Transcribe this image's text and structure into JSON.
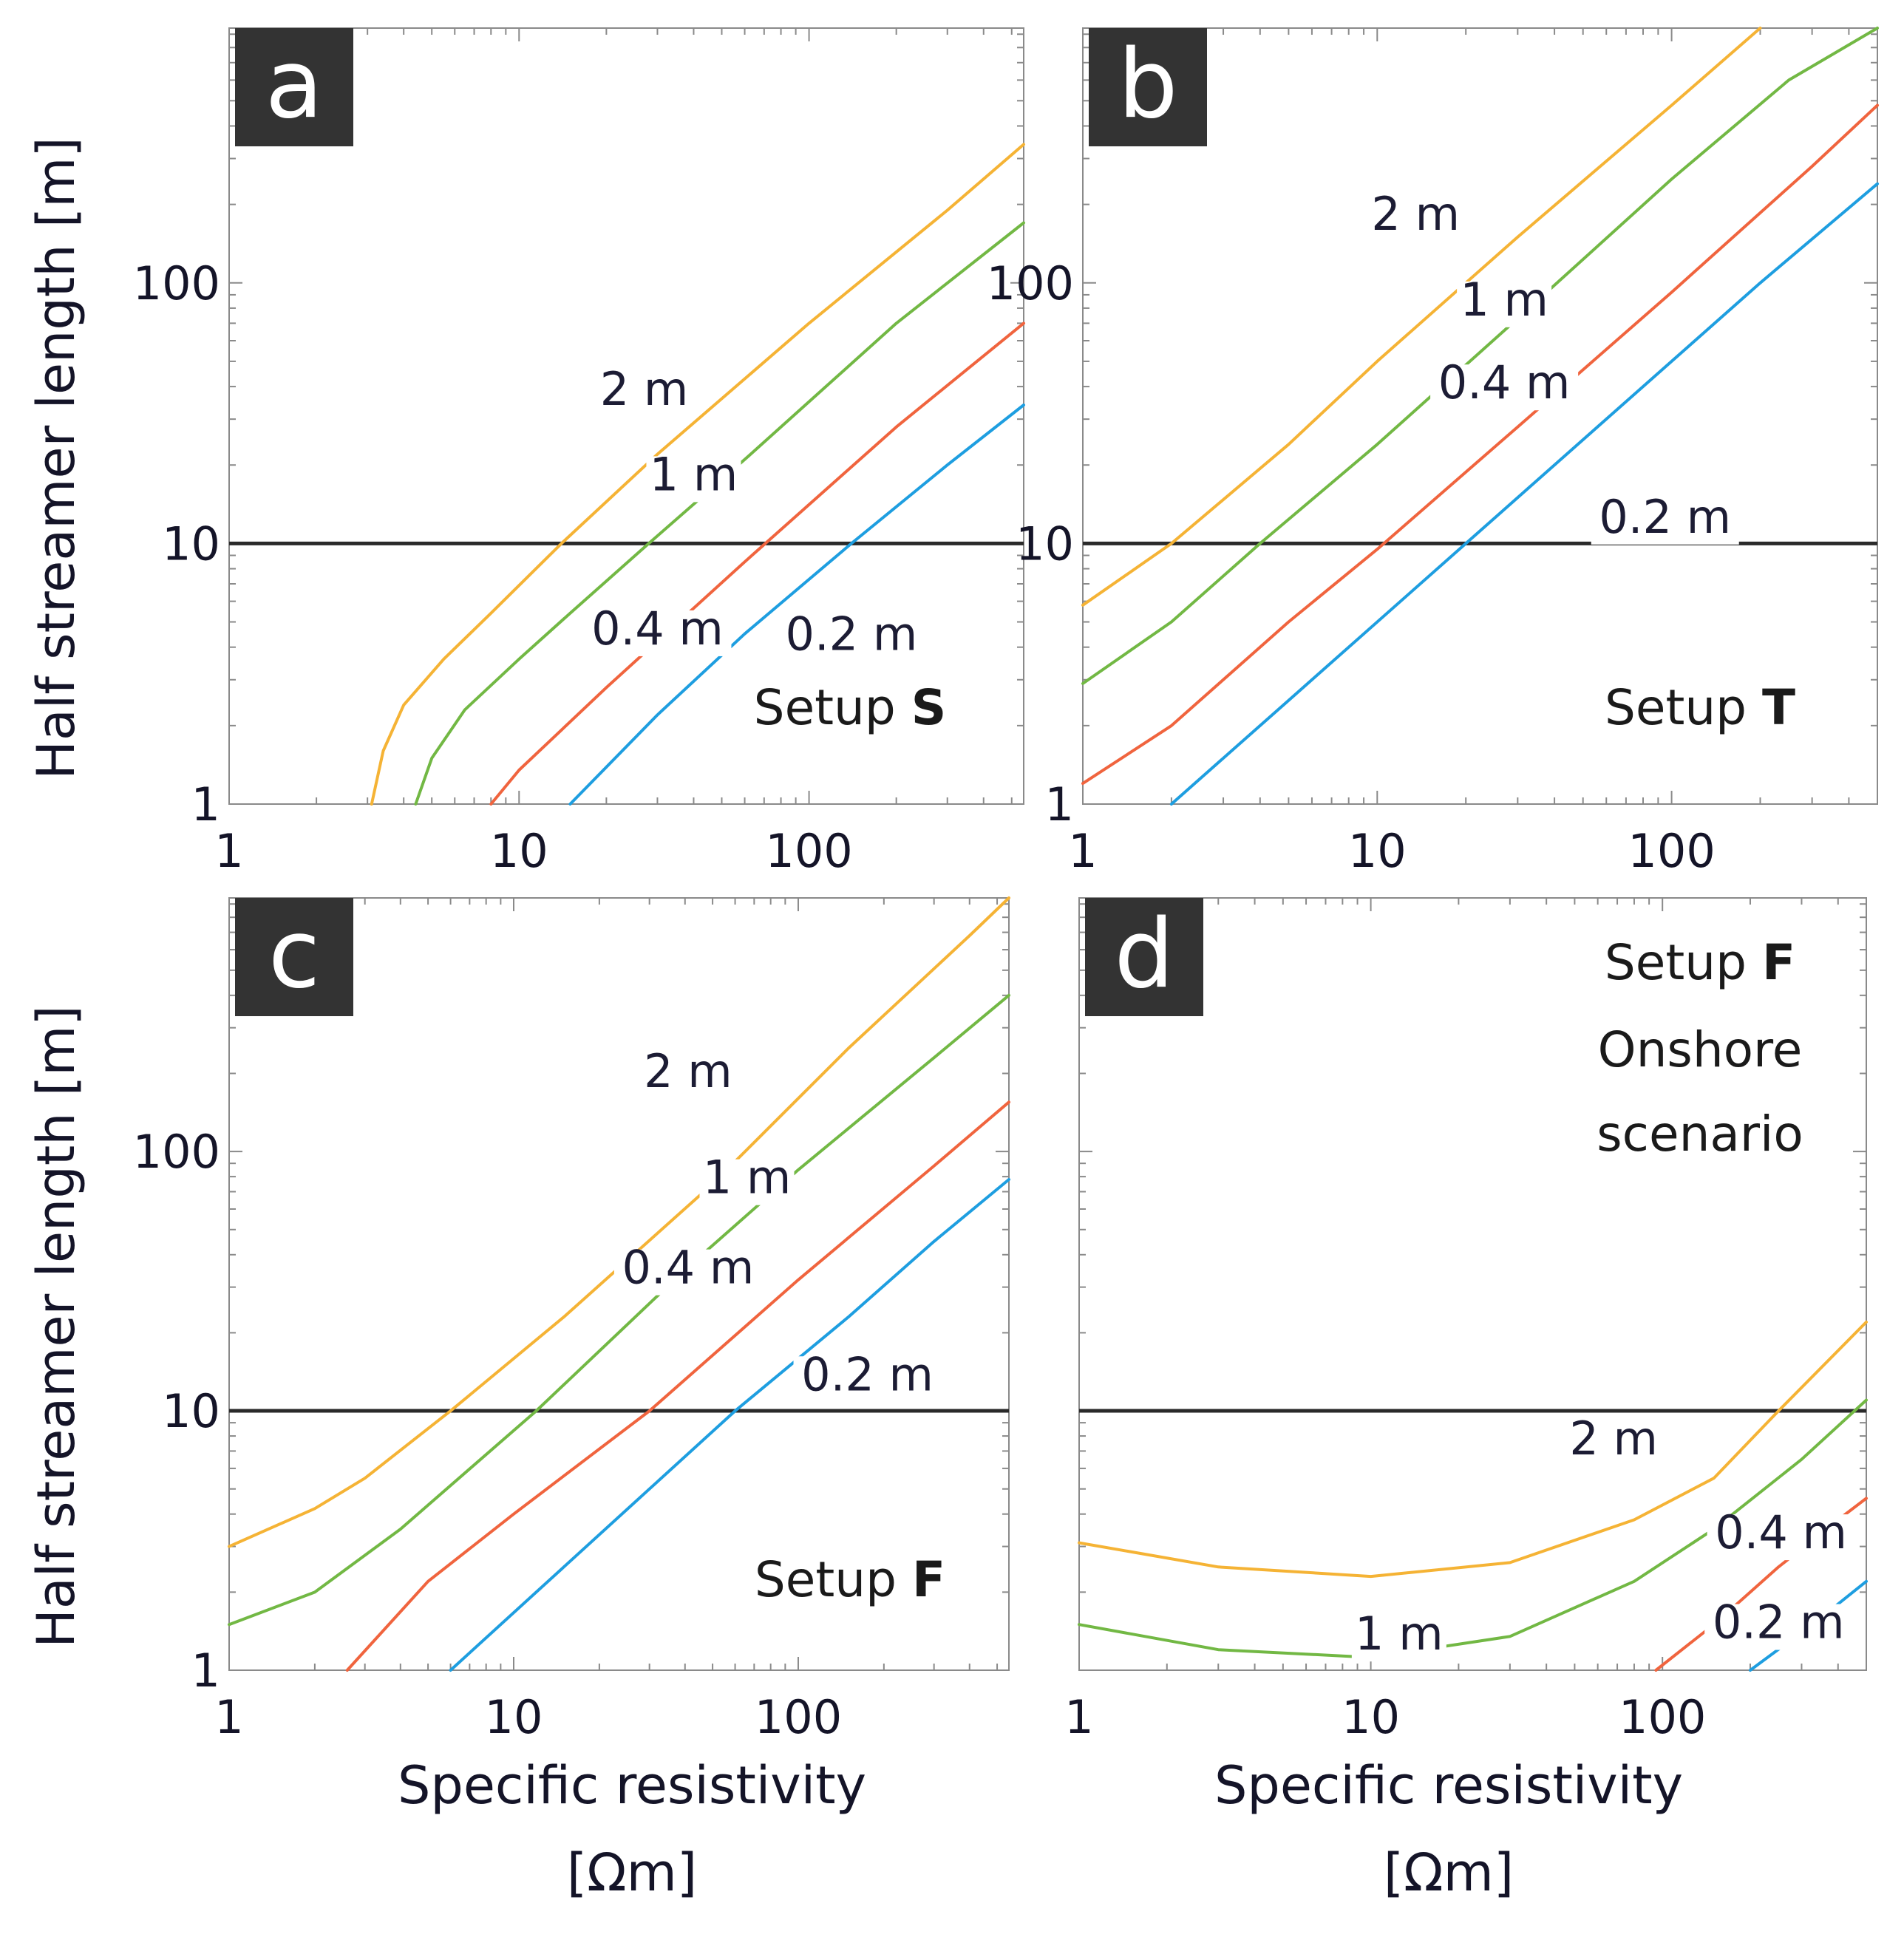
{
  "figure": {
    "y_axis_title": "Half streamer length [m]",
    "x_axis_title_line1": "Specific resistivity",
    "x_axis_title_line2": "[Ωm]"
  },
  "chart_data": [
    {
      "type": "line",
      "panel_letter": "a",
      "annotation": "Setup",
      "annotation_bold": "S",
      "x_scale": "log",
      "y_scale": "log",
      "xlim": [
        1,
        550
      ],
      "ylim": [
        1,
        950
      ],
      "x_ticks": [
        1,
        10,
        100
      ],
      "x_tick_labels": [
        "1",
        "10",
        "100"
      ],
      "y_ticks": [
        1,
        10,
        100
      ],
      "y_tick_labels": [
        "1",
        "10",
        "100"
      ],
      "reference_line_y": 10,
      "series": [
        {
          "name": "2 m",
          "color": "#f5b335",
          "label": "2 m",
          "label_at": [
            27,
            34
          ],
          "x": [
            3.1,
            3.4,
            4.0,
            5.5,
            8,
            14,
            30,
            100,
            300,
            550
          ],
          "y": [
            1.0,
            1.6,
            2.4,
            3.6,
            5.4,
            10,
            22,
            70,
            190,
            340
          ]
        },
        {
          "name": "1 m",
          "color": "#72b844",
          "label": "1 m",
          "label_at": [
            40,
            16
          ],
          "x": [
            4.4,
            5.0,
            6.5,
            10,
            15,
            28,
            60,
            200,
            550
          ],
          "y": [
            1.0,
            1.5,
            2.3,
            3.6,
            5.4,
            10,
            21,
            70,
            170
          ]
        },
        {
          "name": "0.4 m",
          "color": "#f0643e",
          "label": "0.4 m",
          "label_at": [
            30,
            4.1
          ],
          "x": [
            8,
            10,
            20,
            60,
            200,
            550
          ],
          "y": [
            1.0,
            1.35,
            2.8,
            8.5,
            28,
            70
          ]
        },
        {
          "name": "0.2 m",
          "color": "#1e9ee0",
          "label": "0.2 m",
          "label_at": [
            140,
            3.9
          ],
          "x": [
            15,
            30,
            60,
            140,
            300,
            550
          ],
          "y": [
            1.0,
            2.2,
            4.5,
            10,
            20,
            34
          ]
        }
      ]
    },
    {
      "type": "line",
      "panel_letter": "b",
      "annotation": "Setup",
      "annotation_bold": "T",
      "x_scale": "log",
      "y_scale": "log",
      "xlim": [
        1,
        500
      ],
      "ylim": [
        1,
        950
      ],
      "x_ticks": [
        1,
        10,
        100
      ],
      "x_tick_labels": [
        "1",
        "10",
        "100"
      ],
      "y_ticks": [
        1,
        10,
        100
      ],
      "y_tick_labels": [
        "1",
        "10",
        "100"
      ],
      "reference_line_y": 10,
      "series": [
        {
          "name": "2 m",
          "color": "#f5b335",
          "label": "2 m",
          "label_at": [
            13.5,
            160
          ],
          "x": [
            1,
            2,
            5,
            10,
            30,
            100,
            200
          ],
          "y": [
            5.8,
            10,
            24,
            50,
            150,
            480,
            950
          ]
        },
        {
          "name": "1 m",
          "color": "#72b844",
          "label": "1 m",
          "label_at": [
            27,
            75
          ],
          "x": [
            1,
            2,
            4,
            10,
            30,
            100,
            250,
            500
          ],
          "y": [
            2.9,
            5,
            10,
            24,
            73,
            250,
            600,
            950
          ]
        },
        {
          "name": "0.4 m",
          "color": "#f0643e",
          "label": "0.4 m",
          "label_at": [
            27,
            36
          ],
          "x": [
            1,
            2,
            5,
            10,
            30,
            100,
            300,
            500
          ],
          "y": [
            1.2,
            2,
            5,
            9.5,
            28,
            92,
            280,
            480
          ]
        },
        {
          "name": "0.2 m",
          "color": "#1e9ee0",
          "label": "0.2 m",
          "label_at": [
            95,
            11
          ],
          "x": [
            2,
            5,
            20,
            60,
            200,
            500
          ],
          "y": [
            1.0,
            2.5,
            10,
            30,
            100,
            240
          ]
        }
      ]
    },
    {
      "type": "line",
      "panel_letter": "c",
      "annotation": "Setup",
      "annotation_bold": "F",
      "x_scale": "log",
      "y_scale": "log",
      "xlim": [
        1,
        550
      ],
      "ylim": [
        1,
        950
      ],
      "x_ticks": [
        1,
        10,
        100
      ],
      "x_tick_labels": [
        "1",
        "10",
        "100"
      ],
      "y_ticks": [
        1,
        10,
        100
      ],
      "y_tick_labels": [
        "1",
        "10",
        "100"
      ],
      "reference_line_y": 10,
      "series": [
        {
          "name": "2 m",
          "color": "#f5b335",
          "label": "2 m",
          "label_at": [
            41,
            177
          ],
          "x": [
            1,
            2,
            3,
            6,
            15,
            50,
            150,
            400,
            550
          ],
          "y": [
            3.0,
            4.2,
            5.5,
            10,
            23,
            75,
            250,
            680,
            950
          ]
        },
        {
          "name": "1 m",
          "color": "#72b844",
          "label": "1 m",
          "label_at": [
            66,
            69
          ],
          "x": [
            1,
            2,
            4,
            12,
            40,
            100,
            300,
            550
          ],
          "y": [
            1.5,
            2,
            3.5,
            10,
            35,
            85,
            230,
            400
          ]
        },
        {
          "name": "0.4 m",
          "color": "#f0643e",
          "label": "0.4 m",
          "label_at": [
            41,
            31
          ],
          "x": [
            2.6,
            5,
            10,
            30,
            100,
            300,
            550
          ],
          "y": [
            1.0,
            2.2,
            4,
            10,
            32,
            88,
            155
          ]
        },
        {
          "name": "0.2 m",
          "color": "#1e9ee0",
          "label": "0.2 m",
          "label_at": [
            175,
            12
          ],
          "x": [
            6,
            15,
            30,
            60,
            150,
            300,
            550
          ],
          "y": [
            1.0,
            2.5,
            5,
            10,
            23,
            45,
            78
          ]
        }
      ]
    },
    {
      "type": "line",
      "panel_letter": "d",
      "annotation": "Setup",
      "annotation_bold": "F",
      "annotation_line2": "Onshore",
      "annotation_line3": "scenario",
      "x_scale": "log",
      "y_scale": "log",
      "xlim": [
        1,
        500
      ],
      "ylim": [
        1,
        950
      ],
      "x_ticks": [
        1,
        10,
        100
      ],
      "x_tick_labels": [
        "1",
        "10",
        "100"
      ],
      "reference_line_y": 10,
      "series": [
        {
          "name": "2 m",
          "color": "#f5b335",
          "label": "2 m",
          "label_at": [
            68,
            6.8
          ],
          "x": [
            1,
            3,
            10,
            30,
            80,
            150,
            250,
            500
          ],
          "y": [
            3.1,
            2.5,
            2.3,
            2.6,
            3.8,
            5.5,
            10,
            22
          ]
        },
        {
          "name": "1 m",
          "color": "#72b844",
          "label": "1 m",
          "label_at": [
            12.5,
            1.2
          ],
          "x": [
            1,
            3,
            10,
            30,
            80,
            150,
            300,
            500
          ],
          "y": [
            1.5,
            1.2,
            1.12,
            1.35,
            2.2,
            3.5,
            6.5,
            11
          ]
        },
        {
          "name": "0.4 m",
          "color": "#f0643e",
          "label": "0.4 m",
          "label_at": [
            255,
            2.95
          ],
          "x": [
            95,
            150,
            250,
            400,
            500
          ],
          "y": [
            1.0,
            1.5,
            2.5,
            3.8,
            4.6
          ]
        },
        {
          "name": "0.2 m",
          "color": "#1e9ee0",
          "label": "0.2 m",
          "label_at": [
            250,
            1.33
          ],
          "x": [
            200,
            300,
            400,
            500
          ],
          "y": [
            1.0,
            1.4,
            1.8,
            2.2
          ]
        }
      ]
    }
  ]
}
